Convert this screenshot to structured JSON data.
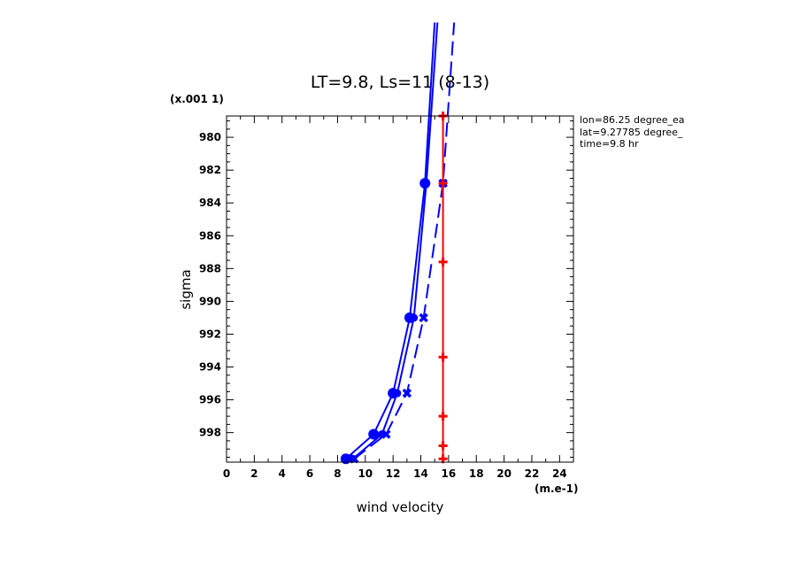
{
  "chart_data": {
    "type": "line",
    "title": "LT=9.8, Ls=11 (8-13)",
    "xlabel": "wind velocity",
    "ylabel": "sigma",
    "x_units": "(m.e-1)",
    "y_scale_label": "(x.001 1)",
    "xlim": [
      0,
      25
    ],
    "ylim": [
      999.8,
      978.7
    ],
    "y_inverted": true,
    "grid": false,
    "x_ticks": [
      0,
      2,
      4,
      6,
      8,
      10,
      12,
      14,
      16,
      18,
      20,
      22,
      24
    ],
    "y_ticks": [
      980,
      982,
      984,
      986,
      988,
      990,
      992,
      994,
      996,
      998
    ],
    "annotations": [
      "lon=86.25 degree_ea",
      "lat=9.27785 degree_",
      "time=9.8 hr"
    ],
    "series": [
      {
        "color": "#0000ff",
        "style": "solid",
        "marker": "circle",
        "points": [
          [
            8.6,
            999.6
          ],
          [
            10.6,
            998.1
          ],
          [
            12.0,
            995.6
          ],
          [
            13.2,
            991.0
          ],
          [
            14.3,
            982.8
          ],
          [
            15.0,
            973.0
          ]
        ]
      },
      {
        "color": "#0000ff",
        "style": "solid",
        "marker": "circle-small",
        "points": [
          [
            9.1,
            999.6
          ],
          [
            11.2,
            998.1
          ],
          [
            12.3,
            995.6
          ],
          [
            13.5,
            991.0
          ],
          [
            14.4,
            982.8
          ],
          [
            15.2,
            973.0
          ]
        ]
      },
      {
        "color": "#0000ff",
        "style": "dashed",
        "marker": "x",
        "points": [
          [
            9.2,
            999.6
          ],
          [
            11.5,
            998.1
          ],
          [
            13.0,
            995.6
          ],
          [
            14.2,
            991.0
          ],
          [
            15.6,
            982.8
          ],
          [
            16.4,
            973.0
          ]
        ]
      },
      {
        "color": "#ff0000",
        "style": "solid",
        "marker": "plus",
        "points": [
          [
            15.6,
            999.6
          ],
          [
            15.6,
            998.8
          ],
          [
            15.6,
            997.0
          ],
          [
            15.6,
            993.4
          ],
          [
            15.6,
            987.6
          ],
          [
            15.6,
            982.8
          ],
          [
            15.6,
            978.7
          ]
        ]
      }
    ]
  }
}
